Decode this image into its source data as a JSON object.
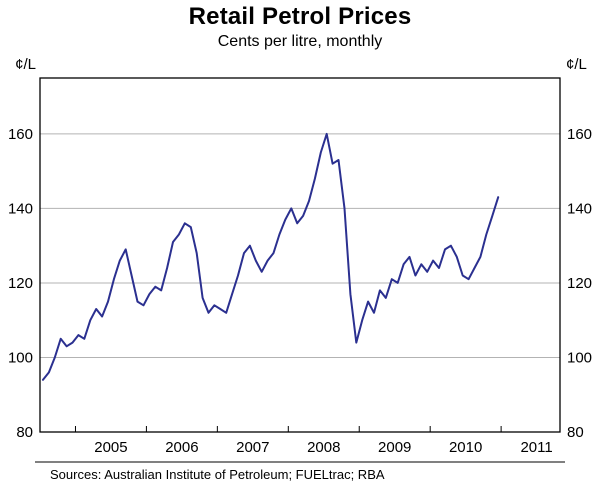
{
  "header": {
    "title": "Retail Petrol Prices",
    "subtitle": "Cents per litre, monthly"
  },
  "axes": {
    "unit_left": "¢/L",
    "unit_right": "¢/L"
  },
  "footer": {
    "sources": "Sources: Australian Institute of Petroleum; FUELtrac; RBA"
  },
  "colors": {
    "line": "#2b3090",
    "grid": "#b3b3b3",
    "frame": "#000000"
  },
  "chart_data": {
    "type": "line",
    "title": "Retail Petrol Prices",
    "subtitle": "Cents per litre, monthly",
    "ylabel": "¢/L",
    "ylim": [
      80,
      175
    ],
    "yticks": [
      80,
      100,
      120,
      140,
      160
    ],
    "xlim": [
      2004.5,
      2011.83
    ],
    "xtick_labels": [
      "2005",
      "2006",
      "2007",
      "2008",
      "2009",
      "2010",
      "2011"
    ],
    "xtick_label_positions": [
      2005.5,
      2006.5,
      2007.5,
      2008.5,
      2009.5,
      2010.5,
      2011.5
    ],
    "xtick_marks": [
      2005,
      2006,
      2007,
      2008,
      2009,
      2010,
      2011
    ],
    "grid": "horizontal",
    "legend": "none",
    "series": [
      {
        "name": "Retail petrol price",
        "color": "#2b3090",
        "months": [
          "2004-07",
          "2004-08",
          "2004-09",
          "2004-10",
          "2004-11",
          "2004-12",
          "2005-01",
          "2005-02",
          "2005-03",
          "2005-04",
          "2005-05",
          "2005-06",
          "2005-07",
          "2005-08",
          "2005-09",
          "2005-10",
          "2005-11",
          "2005-12",
          "2006-01",
          "2006-02",
          "2006-03",
          "2006-04",
          "2006-05",
          "2006-06",
          "2006-07",
          "2006-08",
          "2006-09",
          "2006-10",
          "2006-11",
          "2006-12",
          "2007-01",
          "2007-02",
          "2007-03",
          "2007-04",
          "2007-05",
          "2007-06",
          "2007-07",
          "2007-08",
          "2007-09",
          "2007-10",
          "2007-11",
          "2007-12",
          "2008-01",
          "2008-02",
          "2008-03",
          "2008-04",
          "2008-05",
          "2008-06",
          "2008-07",
          "2008-08",
          "2008-09",
          "2008-10",
          "2008-11",
          "2008-12",
          "2009-01",
          "2009-02",
          "2009-03",
          "2009-04",
          "2009-05",
          "2009-06",
          "2009-07",
          "2009-08",
          "2009-09",
          "2009-10",
          "2009-11",
          "2009-12",
          "2010-01",
          "2010-02",
          "2010-03",
          "2010-04",
          "2010-05",
          "2010-06",
          "2010-07",
          "2010-08",
          "2010-09",
          "2010-10",
          "2010-11",
          "2010-12"
        ],
        "values": [
          94,
          96,
          100,
          105,
          103,
          104,
          106,
          105,
          110,
          113,
          111,
          115,
          121,
          126,
          129,
          122,
          115,
          114,
          117,
          119,
          118,
          124,
          131,
          133,
          136,
          135,
          128,
          116,
          112,
          114,
          113,
          112,
          117,
          122,
          128,
          130,
          126,
          123,
          126,
          128,
          133,
          137,
          140,
          136,
          138,
          142,
          148,
          155,
          160,
          152,
          153,
          140,
          117,
          104,
          110,
          115,
          112,
          118,
          116,
          121,
          120,
          125,
          127,
          122,
          125,
          123,
          126,
          124,
          129,
          130,
          127,
          122,
          121,
          124,
          127,
          133,
          138,
          143
        ]
      }
    ]
  }
}
